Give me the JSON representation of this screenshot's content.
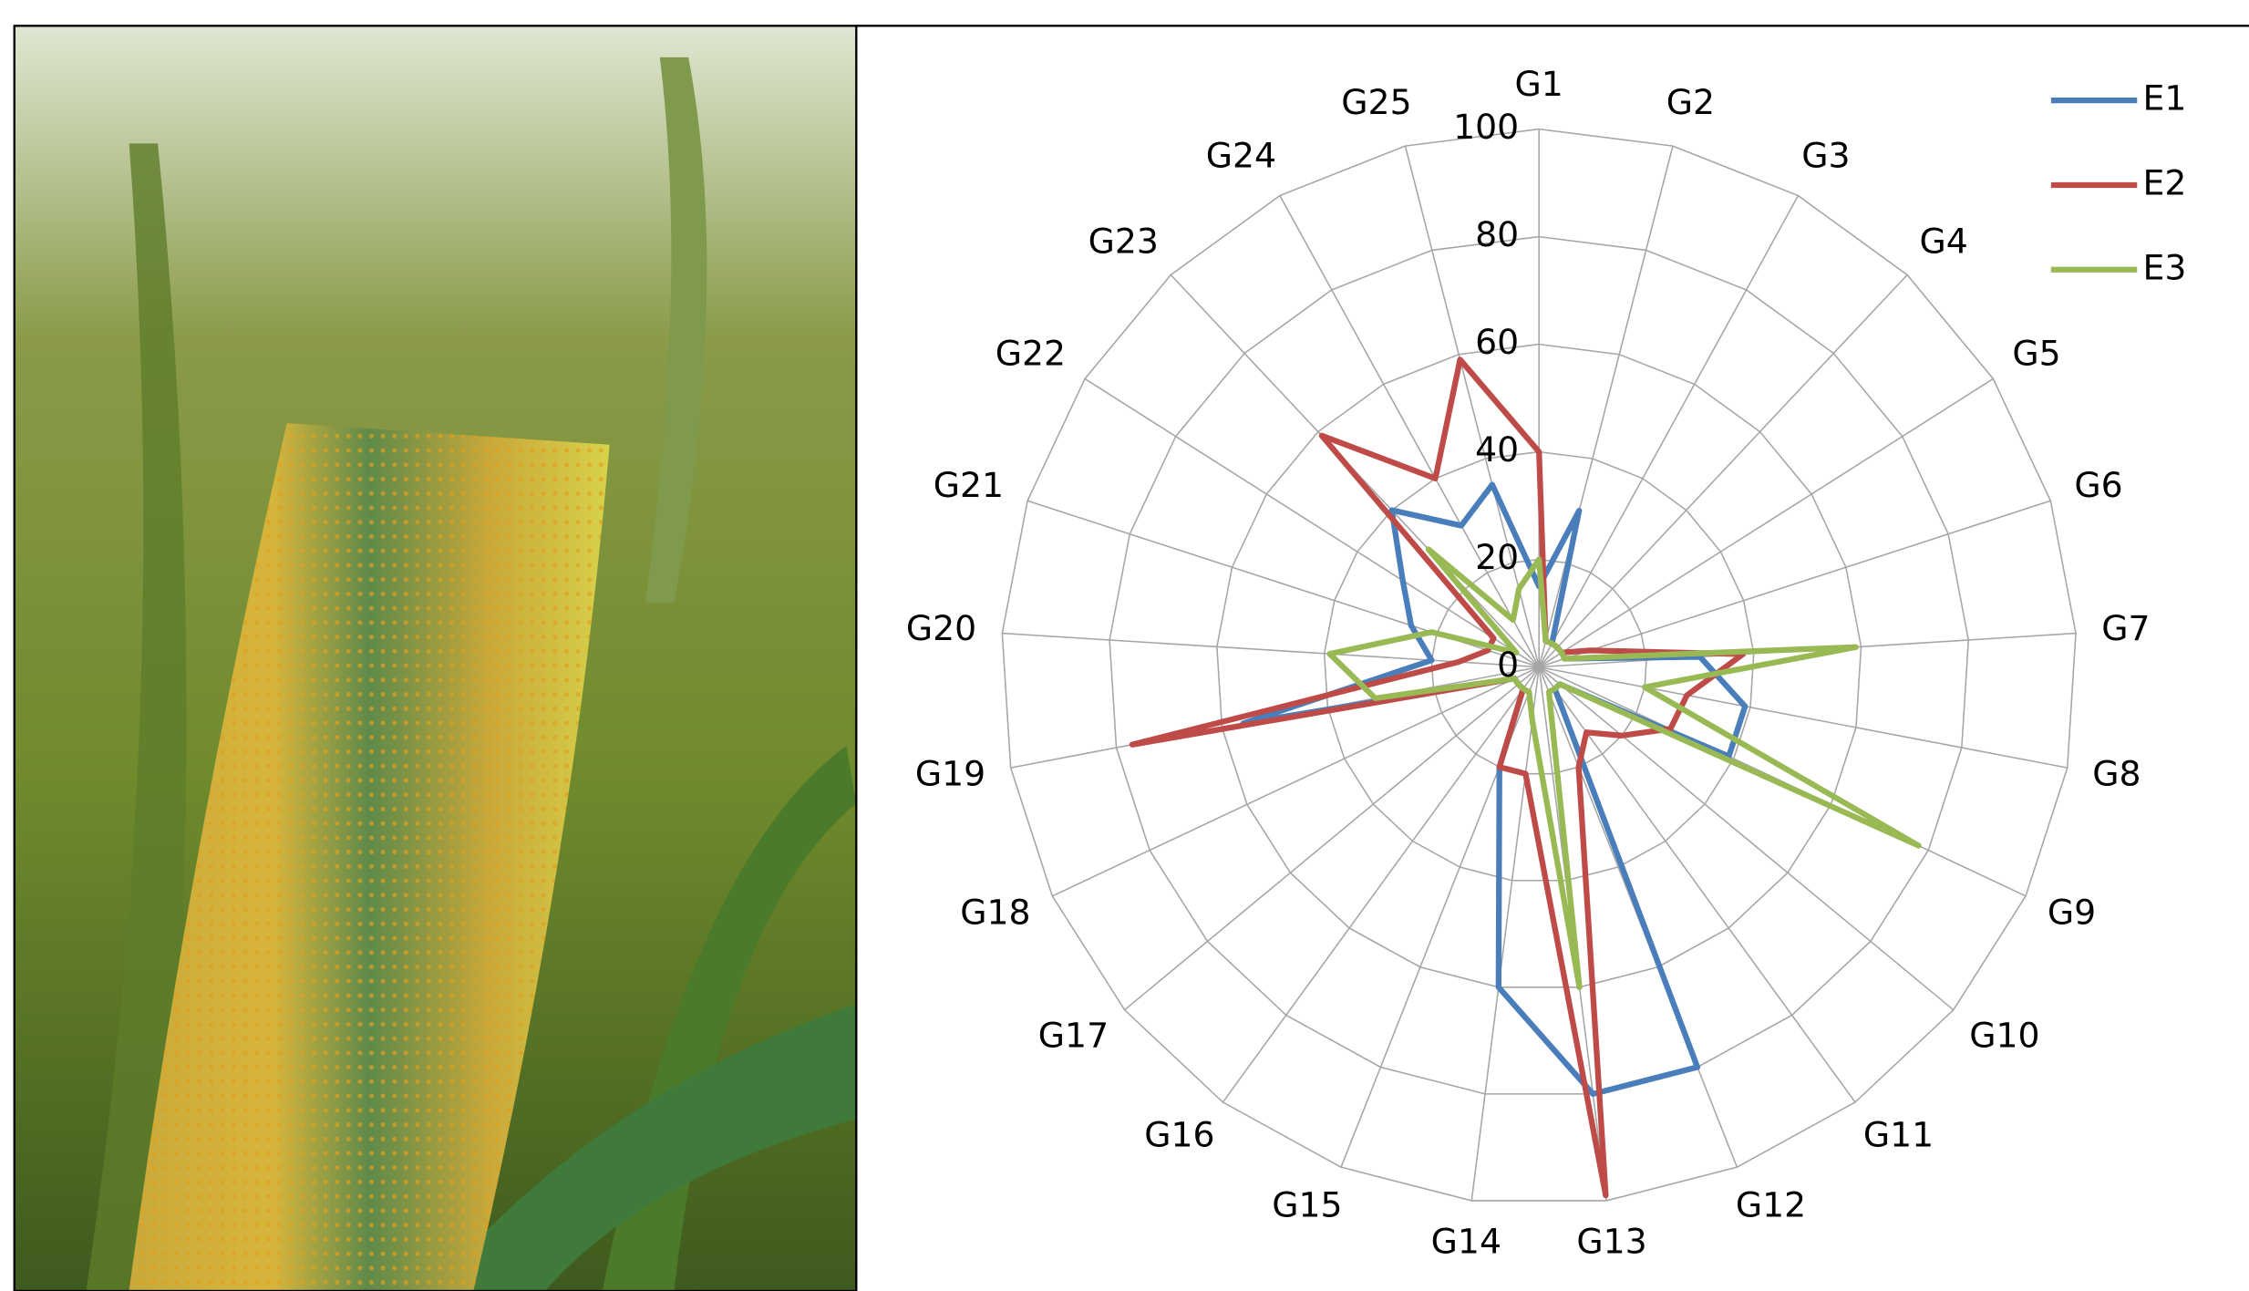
{
  "chart_data": {
    "type": "radar",
    "categories": [
      "G1",
      "G2",
      "G3",
      "G4",
      "G5",
      "G6",
      "G7",
      "G8",
      "G9",
      "G10",
      "G11",
      "G12",
      "G13",
      "G14",
      "G15",
      "G16",
      "G17",
      "G18",
      "G19",
      "G20",
      "G21",
      "G22",
      "G23",
      "G24",
      "G25"
    ],
    "rlim": [
      0,
      100
    ],
    "rticks": [
      0,
      20,
      40,
      60,
      80,
      100
    ],
    "grid": true,
    "legend": "upper right",
    "series": [
      {
        "name": "E1",
        "color": "#4a7ebb",
        "values": [
          15,
          30,
          5,
          5,
          5,
          5,
          30,
          39,
          39,
          5,
          5,
          80,
          80,
          60,
          20,
          5,
          5,
          5,
          56,
          20,
          25,
          30,
          40,
          30,
          35
        ]
      },
      {
        "name": "E2",
        "color": "#be4b48",
        "values": [
          40,
          5,
          5,
          5,
          5,
          10,
          38,
          28,
          27,
          20,
          15,
          20,
          99,
          20,
          20,
          5,
          5,
          5,
          77,
          15,
          10,
          10,
          59,
          40,
          59
        ]
      },
      {
        "name": "E3",
        "color": "#98b954",
        "values": [
          20,
          5,
          5,
          5,
          5,
          5,
          59,
          20,
          78,
          5,
          5,
          5,
          60,
          10,
          5,
          5,
          5,
          5,
          31,
          39,
          21,
          5,
          30,
          10,
          15
        ]
      }
    ]
  }
}
